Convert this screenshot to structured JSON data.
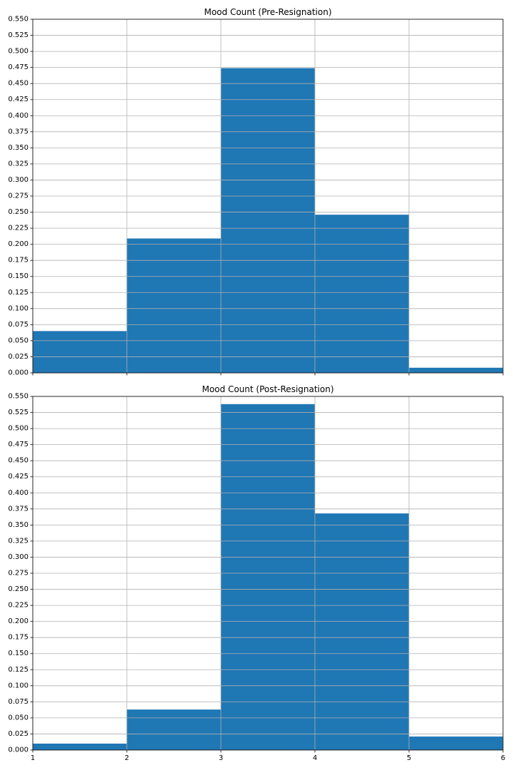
{
  "chart_data": [
    {
      "type": "bar",
      "title": "Mood Count (Pre-Resignation)",
      "xlabel": "",
      "ylabel": "",
      "bins": [
        [
          1,
          2
        ],
        [
          2,
          3
        ],
        [
          3,
          4
        ],
        [
          4,
          5
        ],
        [
          5,
          6
        ]
      ],
      "values": [
        0.065,
        0.209,
        0.474,
        0.246,
        0.008
      ],
      "xlim": [
        1,
        6
      ],
      "ylim": [
        0,
        0.55
      ],
      "x_ticks": [
        1,
        2,
        3,
        4,
        5,
        6
      ],
      "x_tick_labels": [],
      "y_ticks": [
        0,
        0.025,
        0.05,
        0.075,
        0.1,
        0.125,
        0.15,
        0.175,
        0.2,
        0.225,
        0.25,
        0.275,
        0.3,
        0.325,
        0.35,
        0.375,
        0.4,
        0.425,
        0.45,
        0.475,
        0.5,
        0.525,
        0.55
      ],
      "y_tick_labels": [
        "0.000",
        "0.025",
        "0.050",
        "0.075",
        "0.100",
        "0.125",
        "0.150",
        "0.175",
        "0.200",
        "0.225",
        "0.250",
        "0.275",
        "0.300",
        "0.325",
        "0.350",
        "0.375",
        "0.400",
        "0.425",
        "0.450",
        "0.475",
        "0.500",
        "0.525",
        "0.550"
      ],
      "grid": true,
      "color": "#1f77b4"
    },
    {
      "type": "bar",
      "title": "Mood Count (Post-Resignation)",
      "xlabel": "",
      "ylabel": "",
      "bins": [
        [
          1,
          2
        ],
        [
          2,
          3
        ],
        [
          3,
          4
        ],
        [
          4,
          5
        ],
        [
          5,
          6
        ]
      ],
      "values": [
        0.01,
        0.063,
        0.538,
        0.368,
        0.021
      ],
      "xlim": [
        1,
        6
      ],
      "ylim": [
        0,
        0.55
      ],
      "x_ticks": [
        1,
        2,
        3,
        4,
        5,
        6
      ],
      "x_tick_labels": [
        "1",
        "2",
        "3",
        "4",
        "5",
        "6"
      ],
      "y_ticks": [
        0,
        0.025,
        0.05,
        0.075,
        0.1,
        0.125,
        0.15,
        0.175,
        0.2,
        0.225,
        0.25,
        0.275,
        0.3,
        0.325,
        0.35,
        0.375,
        0.4,
        0.425,
        0.45,
        0.475,
        0.5,
        0.525,
        0.55
      ],
      "y_tick_labels": [
        "0.000",
        "0.025",
        "0.050",
        "0.075",
        "0.100",
        "0.125",
        "0.150",
        "0.175",
        "0.200",
        "0.225",
        "0.250",
        "0.275",
        "0.300",
        "0.325",
        "0.350",
        "0.375",
        "0.400",
        "0.425",
        "0.450",
        "0.475",
        "0.500",
        "0.525",
        "0.550"
      ],
      "grid": true,
      "color": "#1f77b4"
    }
  ]
}
